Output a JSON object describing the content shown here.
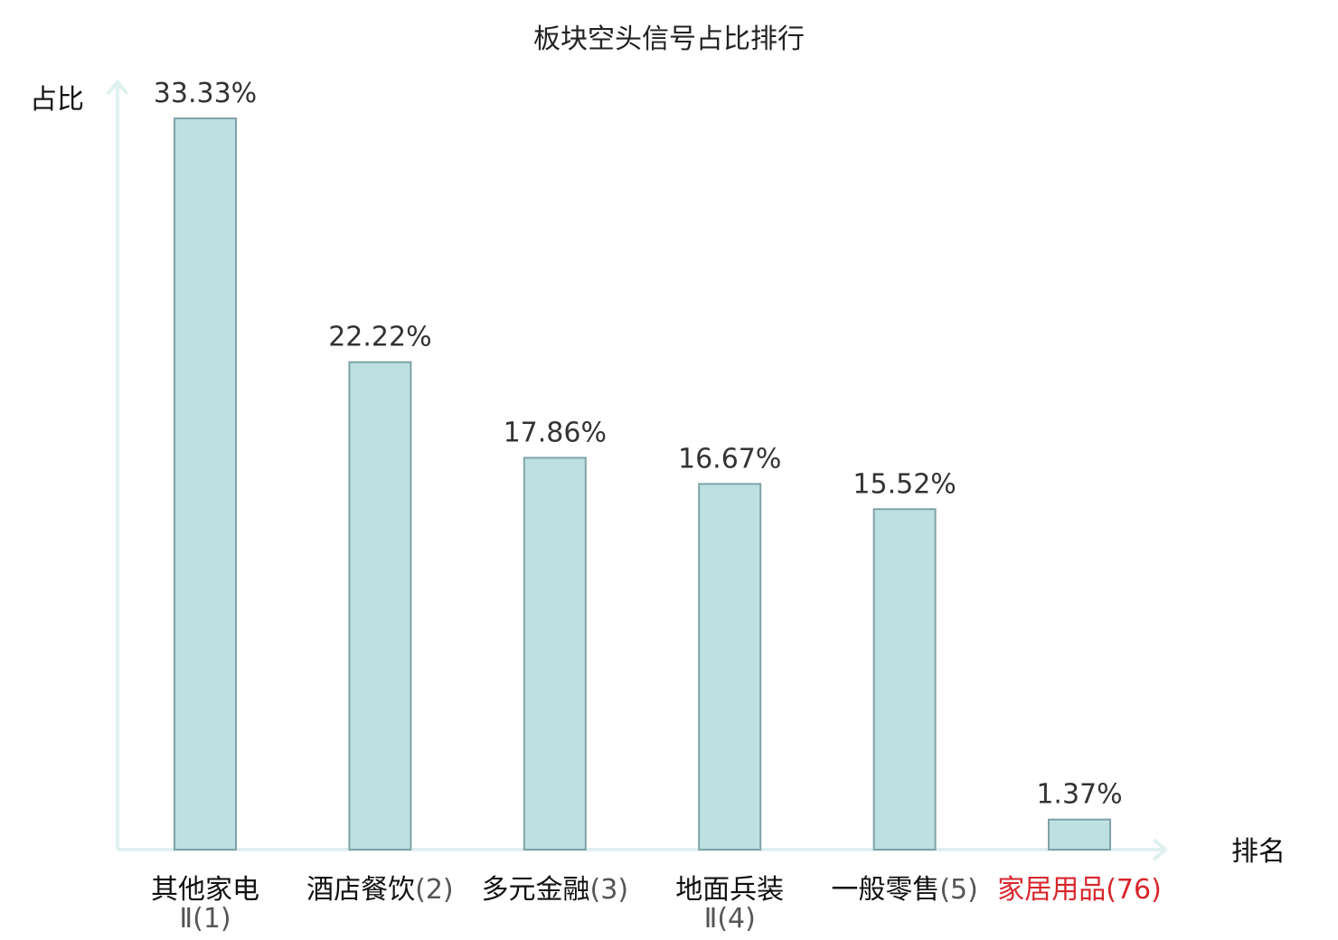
{
  "chart_data": {
    "type": "bar",
    "title": "板块空头信号占比排行",
    "ylabel": "占比",
    "xlabel": "排名",
    "ylim": [
      0,
      33.33
    ],
    "categories": [
      {
        "name": "其他家电",
        "rank": "Ⅱ(1)",
        "highlight": false
      },
      {
        "name": "酒店餐饮",
        "rank": "(2)",
        "highlight": false
      },
      {
        "name": "多元金融",
        "rank": "(3)",
        "highlight": false
      },
      {
        "name": "地面兵装",
        "rank": "Ⅱ(4)",
        "highlight": false
      },
      {
        "name": "一般零售",
        "rank": "(5)",
        "highlight": false
      },
      {
        "name": "家居用品",
        "rank": "(76)",
        "highlight": true
      }
    ],
    "values": [
      33.33,
      22.22,
      17.86,
      16.67,
      15.52,
      1.37
    ],
    "value_labels": [
      "33.33%",
      "22.22%",
      "17.86%",
      "16.67%",
      "15.52%",
      "1.37%"
    ],
    "colors": {
      "bar_fill": "#bde0e3",
      "bar_stroke": "#7fa3a6",
      "axis": "#dff1ef",
      "highlight_text": "#d9262c"
    },
    "grid": false
  }
}
